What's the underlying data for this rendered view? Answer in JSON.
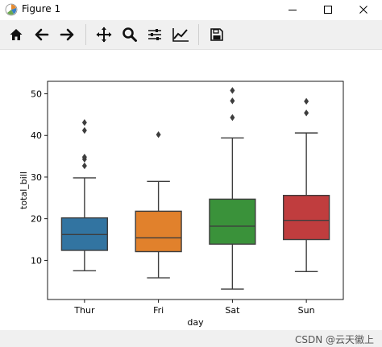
{
  "window": {
    "title": "Figure 1"
  },
  "toolbar": {
    "tools": [
      "home-icon",
      "back-arrow-icon",
      "forward-arrow-icon",
      "pan-icon",
      "zoom-icon",
      "subplots-config-icon",
      "edit-axis-icon",
      "save-icon"
    ]
  },
  "chart_data": {
    "type": "box",
    "title": "",
    "xlabel": "day",
    "ylabel": "total_bill",
    "ylim": [
      0.6,
      53
    ],
    "yticks": [
      10,
      20,
      30,
      40,
      50
    ],
    "categories": [
      "Thur",
      "Fri",
      "Sat",
      "Sun"
    ],
    "colors": [
      "#3274a1",
      "#e1812c",
      "#3a923a",
      "#c03d3e"
    ],
    "boxes": [
      {
        "category": "Thur",
        "whisker_low": 7.5,
        "q1": 12.4,
        "median": 16.2,
        "q3": 20.2,
        "whisker_high": 29.8,
        "outliers": [
          32.7,
          34.3,
          34.8,
          41.2,
          43.1
        ]
      },
      {
        "category": "Fri",
        "whisker_low": 5.8,
        "q1": 12.1,
        "median": 15.4,
        "q3": 21.8,
        "whisker_high": 28.97,
        "outliers": [
          40.2
        ]
      },
      {
        "category": "Sat",
        "whisker_low": 3.1,
        "q1": 13.9,
        "median": 18.2,
        "q3": 24.7,
        "whisker_high": 39.4,
        "outliers": [
          44.3,
          48.3,
          50.8
        ]
      },
      {
        "category": "Sun",
        "whisker_low": 7.3,
        "q1": 15.0,
        "median": 19.6,
        "q3": 25.6,
        "whisker_high": 40.6,
        "outliers": [
          45.4,
          48.2
        ]
      }
    ]
  },
  "footer": {
    "watermark": "CSDN @云天徽上"
  }
}
